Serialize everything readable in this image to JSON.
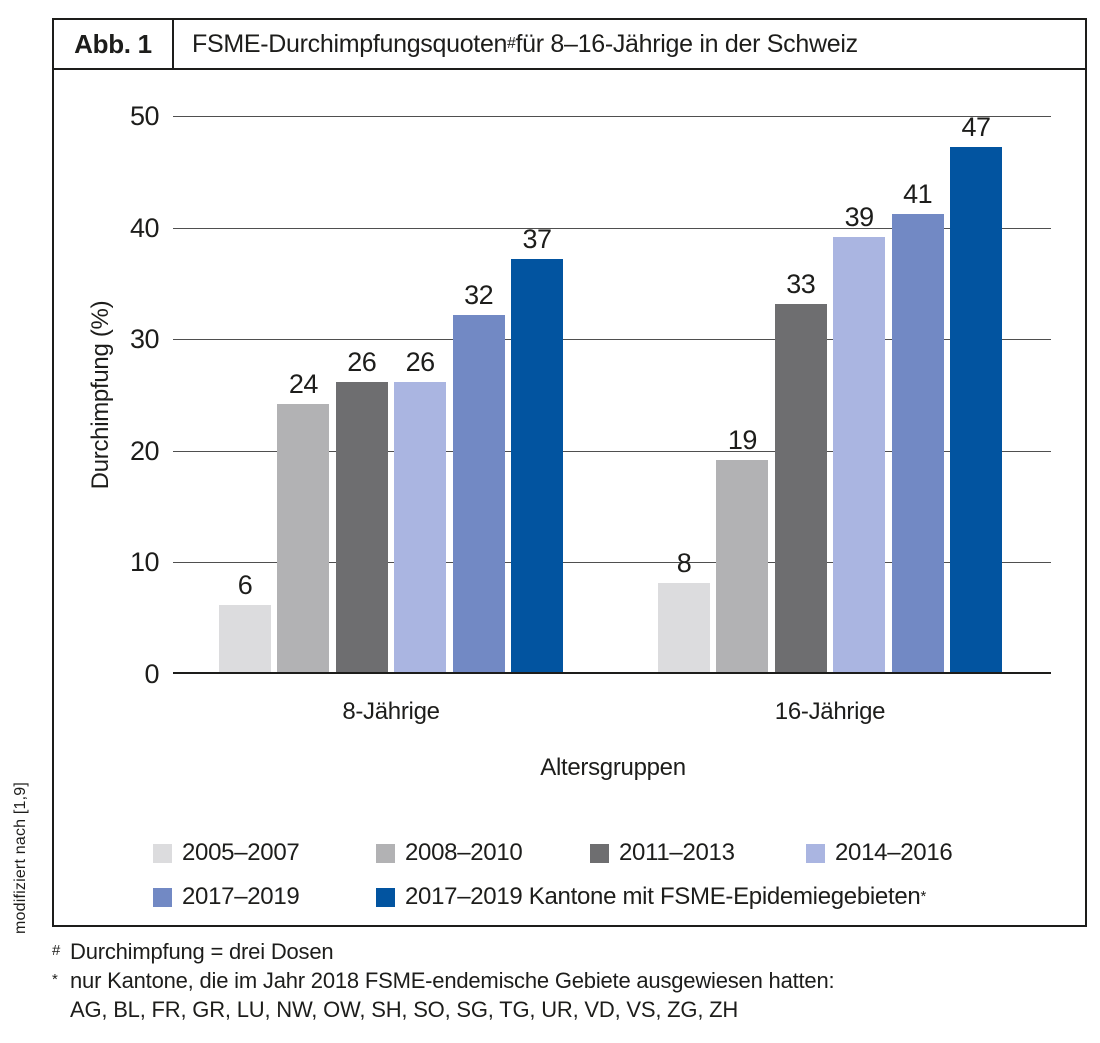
{
  "figure": {
    "label": "Abb. 1",
    "title_main": "FSME-Durchimpfungsquoten",
    "title_sup": "#",
    "title_rest": " für 8–16-Jährige in der Schweiz"
  },
  "side_note": "modifiziert nach [1,9]",
  "chart_data": {
    "type": "bar",
    "categories": [
      "8-Jährige",
      "16-Jährige"
    ],
    "series": [
      {
        "name": "2005–2007",
        "name_sup": "",
        "color": "#dcdcde",
        "values": [
          6,
          8
        ]
      },
      {
        "name": "2008–2010",
        "name_sup": "",
        "color": "#b2b2b4",
        "values": [
          24,
          19
        ]
      },
      {
        "name": "2011–2013",
        "name_sup": "",
        "color": "#6e6e70",
        "values": [
          26,
          33
        ]
      },
      {
        "name": "2014–2016",
        "name_sup": "",
        "color": "#aab5e1",
        "values": [
          26,
          39
        ]
      },
      {
        "name": "2017–2019",
        "name_sup": "",
        "color": "#7289c4",
        "values": [
          32,
          41
        ]
      },
      {
        "name": "2017–2019 Kantone mit FSME-Epidemiegebieten",
        "name_sup": "*",
        "color": "#0254a0",
        "values": [
          37,
          47
        ]
      }
    ],
    "ylabel": "Durchimpfung (%)",
    "xlabel": "Altersgruppen",
    "ylim": [
      0,
      50
    ],
    "yticks": [
      0,
      10,
      20,
      30,
      40,
      50
    ],
    "grid": true,
    "legend_position": "bottom",
    "value_labels": true
  },
  "footnotes": [
    {
      "marker": "#",
      "text": "Durchimpfung = drei Dosen"
    },
    {
      "marker": "*",
      "text": "nur Kantone, die im Jahr 2018 FSME-endemische Gebiete ausgewiesen hatten:"
    },
    {
      "marker": "",
      "text": "AG, BL, FR, GR, LU, NW, OW, SH, SO, SG, TG, UR, VD, VS, ZG, ZH"
    }
  ],
  "colors": {
    "border": "#1d1d1b",
    "grid": "#4f4f4f",
    "text": "#1d1d1b"
  }
}
